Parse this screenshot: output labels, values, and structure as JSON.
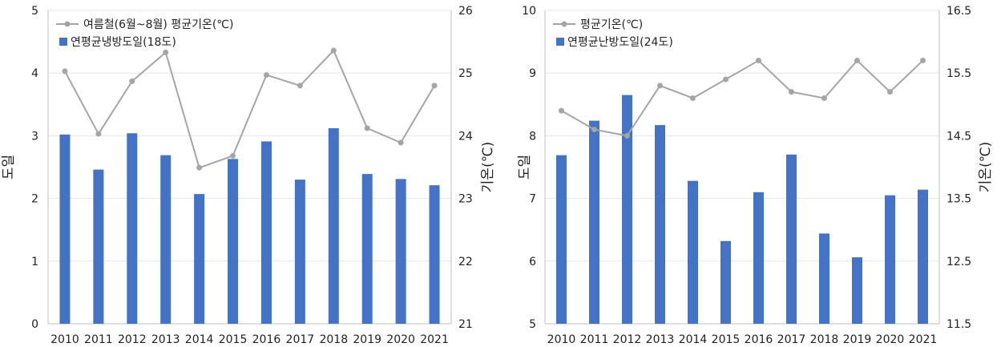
{
  "colors": {
    "bar": "#4472C4",
    "line": "#A5A5A5",
    "axis": "#BFBFBF",
    "grid": "#E6E6E6"
  },
  "chart_data": [
    {
      "type": "bar+line",
      "categories": [
        "2010",
        "2011",
        "2012",
        "2013",
        "2014",
        "2015",
        "2016",
        "2017",
        "2018",
        "2019",
        "2020",
        "2021"
      ],
      "series": [
        {
          "name": "연평균냉방도일(18도)",
          "type": "bar",
          "axis": "left",
          "values": [
            3.02,
            2.46,
            3.04,
            2.69,
            2.07,
            2.63,
            2.91,
            2.3,
            3.12,
            2.39,
            2.31,
            2.21
          ]
        },
        {
          "name": "여름철(6월~8월) 평균기온(℃)",
          "type": "line",
          "axis": "right",
          "values": [
            25.03,
            24.03,
            24.87,
            25.33,
            23.49,
            23.68,
            24.97,
            24.8,
            25.36,
            24.12,
            23.89,
            24.8
          ]
        }
      ],
      "ylabel_left": "도일",
      "ylabel_right": "기온(℃)",
      "ylim_left": [
        0,
        5
      ],
      "ylim_right": [
        21,
        26
      ],
      "yticks_left": [
        "0",
        "1",
        "2",
        "3",
        "4",
        "5"
      ],
      "yticks_right": [
        "21",
        "22",
        "23",
        "24",
        "25",
        "26"
      ],
      "legend_position": "top-left",
      "grid": true
    },
    {
      "type": "bar+line",
      "categories": [
        "2010",
        "2011",
        "2012",
        "2013",
        "2014",
        "2015",
        "2016",
        "2017",
        "2018",
        "2019",
        "2020",
        "2021"
      ],
      "series": [
        {
          "name": "연평균난방도일(24도)",
          "type": "bar",
          "axis": "left",
          "values": [
            7.69,
            8.24,
            8.65,
            8.17,
            7.28,
            6.32,
            7.1,
            7.7,
            6.44,
            6.06,
            7.05,
            7.14
          ]
        },
        {
          "name": "평균기온(℃)",
          "type": "line",
          "axis": "right",
          "values": [
            14.9,
            14.6,
            14.5,
            15.3,
            15.1,
            15.4,
            15.7,
            15.2,
            15.1,
            15.7,
            15.2,
            15.7
          ]
        }
      ],
      "ylabel_left": "도일",
      "ylabel_right": "기온(℃)",
      "ylim_left": [
        5,
        10
      ],
      "ylim_right": [
        11.5,
        16.5
      ],
      "yticks_left": [
        "5",
        "6",
        "7",
        "8",
        "9",
        "10"
      ],
      "yticks_right": [
        "11.5",
        "12.5",
        "13.5",
        "14.5",
        "15.5",
        "16.5"
      ],
      "legend_position": "top-left",
      "grid": true
    }
  ]
}
